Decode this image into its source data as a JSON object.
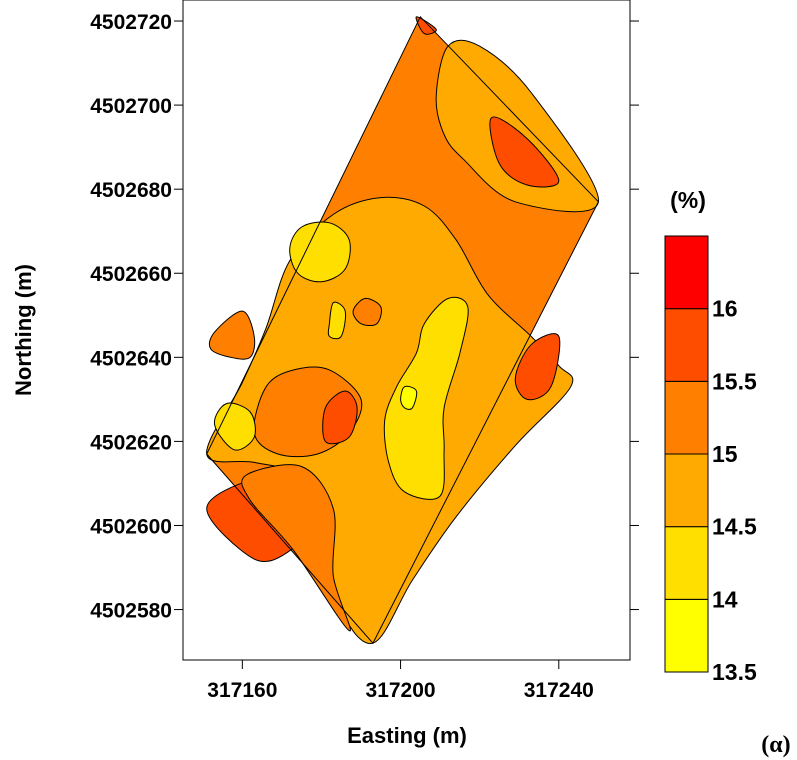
{
  "chart_data": {
    "type": "contour",
    "title": "",
    "xlabel": "Easting (m)",
    "ylabel": "Northing (m)",
    "xlim": [
      317145,
      317258
    ],
    "ylim": [
      4502568,
      4502725
    ],
    "x_ticks": [
      317160,
      317200,
      317240
    ],
    "y_ticks": [
      4502580,
      4502600,
      4502620,
      4502640,
      4502660,
      4502680,
      4502700,
      4502720
    ],
    "field_outline": [
      [
        317193,
        4502572
      ],
      [
        317151,
        4502617
      ],
      [
        317205,
        4502721
      ],
      [
        317250,
        4502677
      ]
    ],
    "colorbar": {
      "unit_label": "(%)",
      "levels": [
        13.5,
        14,
        14.5,
        15,
        15.5,
        16,
        16.5
      ],
      "tick_labels": [
        "13.5",
        "14",
        "14.5",
        "15",
        "15.5",
        "16"
      ],
      "colors": [
        "#ffff00",
        "#ffdf00",
        "#ffaa00",
        "#ff8000",
        "#ff4d00",
        "#ff0000"
      ]
    },
    "regions": [
      {
        "class": "15-15.5",
        "value_range": [
          15,
          15.5
        ],
        "color": "#ff8000",
        "points": [
          [
            317193,
            4502572
          ],
          [
            317151,
            4502617
          ],
          [
            317205,
            4502721
          ],
          [
            317250,
            4502677
          ]
        ]
      },
      {
        "class": "14.5-15",
        "value_range": [
          14.5,
          15
        ],
        "color": "#ffaa00",
        "points": [
          [
            317151,
            4502617
          ],
          [
            317160,
            4502634
          ],
          [
            317166,
            4502647
          ],
          [
            317172,
            4502663
          ],
          [
            317183,
            4502674
          ],
          [
            317195,
            4502678
          ],
          [
            317206,
            4502676
          ],
          [
            317214,
            4502668
          ],
          [
            317222,
            4502655
          ],
          [
            317233,
            4502645
          ],
          [
            317240,
            4502638
          ],
          [
            317243,
            4502633
          ],
          [
            317229,
            4502619
          ],
          [
            317214,
            4502602
          ],
          [
            317203,
            4502587
          ],
          [
            317193,
            4502572
          ],
          [
            317184,
            4502582
          ],
          [
            317180,
            4502603
          ],
          [
            317175,
            4502612
          ],
          [
            317163,
            4502615
          ]
        ]
      },
      {
        "class": "14.5-15",
        "value_range": [
          14.5,
          15
        ],
        "color": "#ffaa00",
        "points": [
          [
            317209,
            4502702
          ],
          [
            317212,
            4502714
          ],
          [
            317220,
            4502714
          ],
          [
            317233,
            4502703
          ],
          [
            317250,
            4502677
          ],
          [
            317229,
            4502677
          ],
          [
            317216,
            4502687
          ],
          [
            317211,
            4502693
          ]
        ]
      },
      {
        "class": "15.5-16",
        "value_range": [
          15.5,
          16
        ],
        "color": "#ff4d00",
        "points": [
          [
            317223,
            4502697
          ],
          [
            317225,
            4502686
          ],
          [
            317232,
            4502681
          ],
          [
            317240,
            4502682
          ],
          [
            317232,
            4502692
          ]
        ]
      },
      {
        "class": "15.5-16",
        "value_range": [
          15.5,
          16
        ],
        "color": "#ff4d00",
        "points": [
          [
            317204,
            4502721
          ],
          [
            317206,
            4502717
          ],
          [
            317209,
            4502718
          ]
        ]
      },
      {
        "class": "15.5-16",
        "value_range": [
          15.5,
          16
        ],
        "color": "#ff4d00",
        "points": [
          [
            317240,
            4502645
          ],
          [
            317233,
            4502643
          ],
          [
            317229,
            4502635
          ],
          [
            317232,
            4502630
          ],
          [
            317238,
            4502633
          ]
        ]
      },
      {
        "class": "15.5-16",
        "value_range": [
          15.5,
          16
        ],
        "color": "#ff4d00",
        "points": [
          [
            317151,
            4502604
          ],
          [
            317163,
            4502611
          ],
          [
            317174,
            4502610
          ],
          [
            317175,
            4502600
          ],
          [
            317172,
            4502594
          ],
          [
            317163,
            4502592
          ]
        ]
      },
      {
        "class": "15-15.5",
        "value_range": [
          15,
          15.5
        ],
        "color": "#ff8000",
        "points": [
          [
            317152,
            4502642
          ],
          [
            317153,
            4502646
          ],
          [
            317160,
            4502651
          ],
          [
            317163,
            4502645
          ],
          [
            317162,
            4502640
          ],
          [
            317157,
            4502640
          ]
        ]
      },
      {
        "class": "15-15.5",
        "value_range": [
          15,
          15.5
        ],
        "color": "#ff8000",
        "points": [
          [
            317161,
            4502612
          ],
          [
            317175,
            4502614
          ],
          [
            317183,
            4502604
          ],
          [
            317183,
            4502588
          ],
          [
            317187,
            4502575
          ],
          [
            317173,
            4502594
          ],
          [
            317162,
            4502606
          ]
        ]
      },
      {
        "class": "15-15.5",
        "value_range": [
          15,
          15.5
        ],
        "color": "#ff8000",
        "points": [
          [
            317163,
            4502622
          ],
          [
            317166,
            4502633
          ],
          [
            317173,
            4502637
          ],
          [
            317182,
            4502637
          ],
          [
            317190,
            4502630
          ],
          [
            317187,
            4502622
          ],
          [
            317179,
            4502617
          ],
          [
            317169,
            4502617
          ]
        ]
      },
      {
        "class": "15.5-16",
        "value_range": [
          15.5,
          16
        ],
        "color": "#ff4d00",
        "points": [
          [
            317181,
            4502620
          ],
          [
            317181,
            4502628
          ],
          [
            317186,
            4502632
          ],
          [
            317189,
            4502628
          ],
          [
            317187,
            4502621
          ]
        ]
      },
      {
        "class": "15-15.5",
        "value_range": [
          15,
          15.5
        ],
        "color": "#ff8000",
        "points": [
          [
            317188,
            4502651
          ],
          [
            317190,
            4502648
          ],
          [
            317194,
            4502648
          ],
          [
            317195,
            4502652
          ],
          [
            317191,
            4502654
          ]
        ]
      },
      {
        "class": "14-14.5",
        "value_range": [
          14,
          14.5
        ],
        "color": "#ffdf00",
        "points": [
          [
            317172,
            4502666
          ],
          [
            317175,
            4502671
          ],
          [
            317182,
            4502672
          ],
          [
            317187,
            4502668
          ],
          [
            317186,
            4502661
          ],
          [
            317180,
            4502658
          ],
          [
            317174,
            4502660
          ]
        ]
      },
      {
        "class": "14-14.5",
        "value_range": [
          14,
          14.5
        ],
        "color": "#ffdf00",
        "points": [
          [
            317182,
            4502648
          ],
          [
            317183,
            4502653
          ],
          [
            317186,
            4502651
          ],
          [
            317185,
            4502645
          ],
          [
            317182,
            4502645
          ]
        ]
      },
      {
        "class": "14-14.5",
        "value_range": [
          14,
          14.5
        ],
        "color": "#ffdf00",
        "points": [
          [
            317153,
            4502624
          ],
          [
            317156,
            4502629
          ],
          [
            317162,
            4502627
          ],
          [
            317163,
            4502621
          ],
          [
            317158,
            4502618
          ]
        ]
      },
      {
        "class": "14-14.5",
        "value_range": [
          14,
          14.5
        ],
        "color": "#ffdf00",
        "points": [
          [
            317196,
            4502625
          ],
          [
            317199,
            4502633
          ],
          [
            317204,
            4502641
          ],
          [
            317206,
            4502648
          ],
          [
            317212,
            4502654
          ],
          [
            317217,
            4502652
          ],
          [
            317215,
            4502641
          ],
          [
            317211,
            4502628
          ],
          [
            317211,
            4502618
          ],
          [
            317210,
            4502607
          ],
          [
            317201,
            4502608
          ],
          [
            317197,
            4502615
          ]
        ]
      },
      {
        "class": "13.5-14",
        "value_range": [
          13.5,
          14
        ],
        "color": "#ffff00",
        "points": [
          [
            317200,
            4502630
          ],
          [
            317201,
            4502633
          ],
          [
            317204,
            4502632
          ],
          [
            317203,
            4502628
          ],
          [
            317201,
            4502628
          ]
        ]
      }
    ]
  },
  "panel_tag": "(α)"
}
